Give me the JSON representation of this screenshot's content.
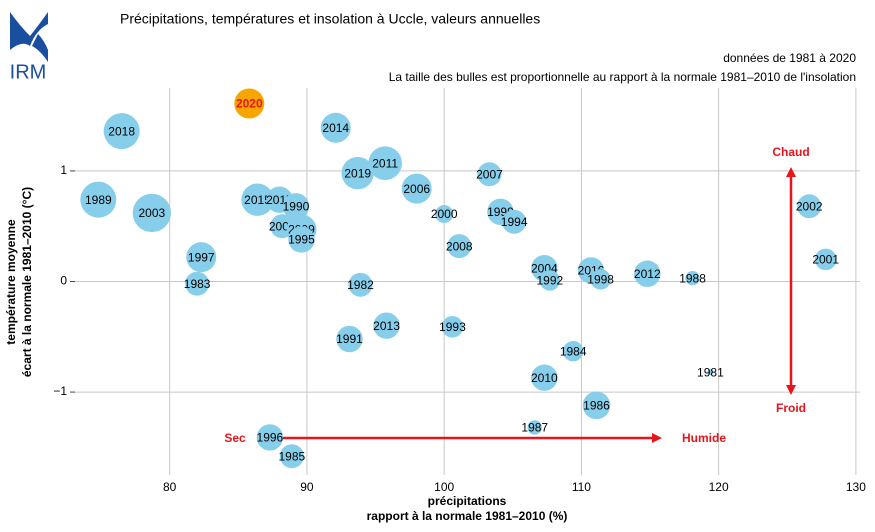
{
  "logo": "IRM",
  "chart_data": {
    "type": "bubble",
    "title": "Précipitations, températures et insolation à Uccle, valeurs annuelles",
    "subtitle": [
      "données de 1981 à 2020",
      "La taille des bulles est proportionnelle au rapport à la normale 1981–2010 de l'insolation"
    ],
    "xlabel": [
      "précipitations",
      "rapport à la normale 1981–2010 (%)"
    ],
    "ylabel": [
      "température moyenne",
      "écart à la normale 1981–2010 (°C)"
    ],
    "annotations": {
      "dry": "Sec",
      "wet": "Humide",
      "warm": "Chaud",
      "cold": "Froid"
    },
    "annotation_color": "#e8141c",
    "labels": [
      "2020",
      "2018",
      "2014",
      "1989",
      "2003",
      "2015",
      "2017",
      "1990",
      "2005",
      "2009",
      "1995",
      "2019",
      "2011",
      "2006",
      "2007",
      "2000",
      "1999",
      "1994",
      "2008",
      "2002",
      "2001",
      "1997",
      "1983",
      "1982",
      "2004",
      "1992",
      "2016",
      "1998",
      "2012",
      "1988",
      "2013",
      "1993",
      "1991",
      "1984",
      "2010",
      "1981",
      "1986",
      "1987",
      "1996",
      "1985"
    ],
    "x": [
      85.8,
      76.5,
      92.1,
      74.8,
      78.7,
      86.4,
      88.0,
      89.2,
      88.2,
      89.6,
      89.6,
      93.7,
      95.7,
      98.0,
      103.3,
      100.0,
      104.1,
      105.1,
      101.1,
      126.6,
      127.8,
      82.3,
      82.0,
      93.9,
      107.3,
      107.7,
      110.7,
      111.4,
      114.8,
      118.1,
      95.8,
      100.6,
      93.1,
      109.4,
      107.3,
      119.4,
      111.1,
      106.6,
      87.3,
      88.9
    ],
    "y": [
      1.61,
      1.36,
      1.39,
      0.74,
      0.62,
      0.74,
      0.74,
      0.68,
      0.5,
      0.47,
      0.38,
      0.98,
      1.07,
      0.84,
      0.97,
      0.61,
      0.63,
      0.54,
      0.32,
      0.68,
      0.2,
      0.22,
      -0.02,
      -0.03,
      0.12,
      0.01,
      0.1,
      0.02,
      0.07,
      0.03,
      -0.4,
      -0.41,
      -0.52,
      -0.63,
      -0.87,
      -0.82,
      -1.12,
      -1.32,
      -1.41,
      -1.58
    ],
    "size": [
      100,
      105,
      100,
      105,
      107,
      102,
      97,
      97,
      95,
      100,
      97,
      102,
      103,
      100,
      95,
      90,
      97,
      95,
      95,
      95,
      93,
      100,
      95,
      95,
      97,
      92,
      97,
      92,
      97,
      87,
      97,
      93,
      97,
      92,
      97,
      80,
      98,
      87,
      97,
      95
    ],
    "colors": [
      "#f7a600",
      "#87ceeb",
      "#87ceeb",
      "#87ceeb",
      "#87ceeb",
      "#87ceeb",
      "#87ceeb",
      "#87ceeb",
      "#87ceeb",
      "#87ceeb",
      "#87ceeb",
      "#87ceeb",
      "#87ceeb",
      "#87ceeb",
      "#87ceeb",
      "#87ceeb",
      "#87ceeb",
      "#87ceeb",
      "#87ceeb",
      "#87ceeb",
      "#87ceeb",
      "#87ceeb",
      "#87ceeb",
      "#87ceeb",
      "#87ceeb",
      "#87ceeb",
      "#87ceeb",
      "#87ceeb",
      "#87ceeb",
      "#87ceeb",
      "#87ceeb",
      "#87ceeb",
      "#87ceeb",
      "#87ceeb",
      "#87ceeb",
      "#87ceeb",
      "#87ceeb",
      "#87ceeb",
      "#87ceeb",
      "#87ceeb"
    ],
    "label_colors": [
      "#e8141c",
      "#000000",
      "#000000",
      "#000000",
      "#000000",
      "#000000",
      "#000000",
      "#000000",
      "#000000",
      "#000000",
      "#000000",
      "#000000",
      "#000000",
      "#000000",
      "#000000",
      "#000000",
      "#000000",
      "#000000",
      "#000000",
      "#000000",
      "#000000",
      "#000000",
      "#000000",
      "#000000",
      "#000000",
      "#000000",
      "#000000",
      "#000000",
      "#000000",
      "#000000",
      "#000000",
      "#000000",
      "#000000",
      "#000000",
      "#000000",
      "#000000",
      "#000000",
      "#000000",
      "#000000",
      "#000000"
    ],
    "xlim": [
      73.1,
      130.3
    ],
    "ylim": [
      -1.75,
      1.75
    ],
    "xticks": [
      80,
      90,
      100,
      110,
      120,
      130
    ],
    "yticks": [
      {
        "value": -1,
        "label": "−1"
      },
      0,
      1
    ],
    "grid": true
  }
}
